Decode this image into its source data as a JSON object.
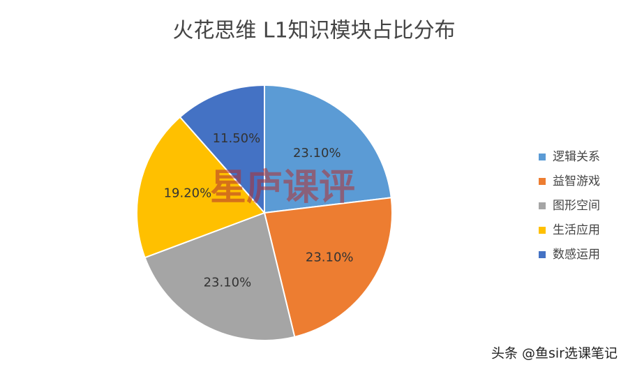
{
  "chart_data": {
    "type": "pie",
    "title": "火花思维 L1知识模块占比分布",
    "categories": [
      "逻辑关系",
      "益智游戏",
      "图形空间",
      "生活应用",
      "数感运用"
    ],
    "values": [
      23.1,
      23.1,
      23.1,
      19.2,
      11.5
    ],
    "value_labels": [
      "23.10%",
      "23.10%",
      "23.10%",
      "19.20%",
      "11.50%"
    ],
    "colors": [
      "#5b9bd5",
      "#ed7d31",
      "#a5a5a5",
      "#ffc000",
      "#4472c4"
    ],
    "legend": "right"
  },
  "watermark": "星庐课评",
  "credit": "头条 @鱼sir选课笔记"
}
